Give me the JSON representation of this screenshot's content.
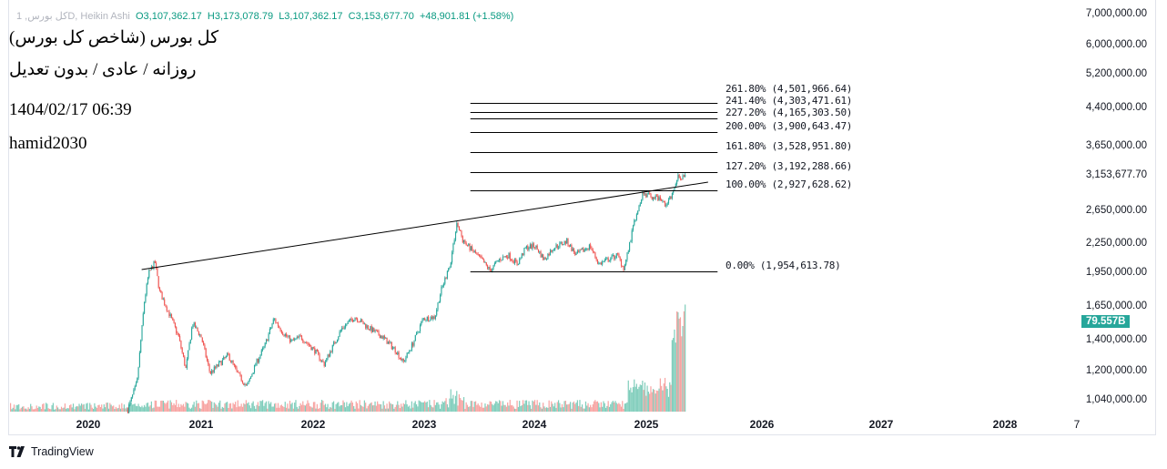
{
  "legend": {
    "symbol": "کل بورس, 1D, Heikin Ashi",
    "open": "O3,107,362.17",
    "high": "H3,173,078.79",
    "low": "L3,107,362.17",
    "close": "C3,153,677.70",
    "change": "+48,901.81 (+1.58%)"
  },
  "notes": {
    "title": "کل بورس (شاخص کل بورس)",
    "subtitle": "روزانه / عادی / بدون تعدیل",
    "datetime": "1404/02/17 06:39",
    "author": "hamid2030"
  },
  "volume_badge": "79.557B",
  "footer": {
    "logo_text": "TradingView"
  },
  "colors": {
    "up": "#26a69a",
    "down": "#ef5350",
    "volume_up": "#7fcdbb",
    "volume_down": "#f7a3a1",
    "line": "#000000"
  },
  "chart_data": {
    "type": "candlestick",
    "style": "Heikin Ashi",
    "y_scale": "log",
    "yticks": [
      "7,000,000.00",
      "6,000,000.00",
      "5,200,000.00",
      "4,400,000.00",
      "3,650,000.00",
      "2,650,000.00",
      "2,250,000.00",
      "1,950,000.00",
      "1,650,000.00",
      "1,400,000.00",
      "1,200,000.00",
      "1,040,000.00"
    ],
    "ytick_values": [
      7000000,
      6000000,
      5200000,
      4400000,
      3650000,
      2650000,
      2250000,
      1950000,
      1650000,
      1400000,
      1200000,
      1040000
    ],
    "last_price_label": "3,153,677.70",
    "last_price": 3153677.7,
    "xticks": [
      "2020",
      "2021",
      "2022",
      "2023",
      "2024",
      "2025",
      "2026",
      "2027",
      "2028",
      "7"
    ],
    "grid": false,
    "price_path": [
      [
        "2020-05-08",
        989000
      ],
      [
        "2020-06-07",
        1132000
      ],
      [
        "2020-07-01",
        1696000
      ],
      [
        "2020-07-15",
        1941000
      ],
      [
        "2020-08-04",
        2049000
      ],
      [
        "2020-08-19",
        1774000
      ],
      [
        "2020-09-20",
        1585000
      ],
      [
        "2020-10-20",
        1417000
      ],
      [
        "2020-11-12",
        1210000
      ],
      [
        "2020-12-04",
        1516000
      ],
      [
        "2021-01-01",
        1417000
      ],
      [
        "2021-01-30",
        1184000
      ],
      [
        "2021-02-28",
        1238000
      ],
      [
        "2021-03-30",
        1295000
      ],
      [
        "2021-04-29",
        1184000
      ],
      [
        "2021-05-30",
        1107000
      ],
      [
        "2021-06-27",
        1238000
      ],
      [
        "2021-07-27",
        1355000
      ],
      [
        "2021-08-26",
        1550000
      ],
      [
        "2021-09-24",
        1449000
      ],
      [
        "2021-10-23",
        1386000
      ],
      [
        "2021-11-22",
        1417000
      ],
      [
        "2022-01-06",
        1325000
      ],
      [
        "2022-02-06",
        1238000
      ],
      [
        "2022-03-07",
        1355000
      ],
      [
        "2022-04-06",
        1482000
      ],
      [
        "2022-05-19",
        1564000
      ],
      [
        "2022-07-02",
        1482000
      ],
      [
        "2022-08-17",
        1417000
      ],
      [
        "2022-09-30",
        1325000
      ],
      [
        "2022-10-24",
        1249000
      ],
      [
        "2022-11-28",
        1386000
      ],
      [
        "2022-12-28",
        1550000
      ],
      [
        "2023-02-05",
        1564000
      ],
      [
        "2023-02-25",
        1774000
      ],
      [
        "2023-03-28",
        2030000
      ],
      [
        "2023-04-19",
        2486000
      ],
      [
        "2023-05-10",
        2272000
      ],
      [
        "2023-06-09",
        2172000
      ],
      [
        "2023-07-09",
        2076000
      ],
      [
        "2023-08-07",
        1967000
      ],
      [
        "2023-09-06",
        2076000
      ],
      [
        "2023-10-06",
        2124000
      ],
      [
        "2023-11-05",
        2030000
      ],
      [
        "2023-12-04",
        2202000
      ],
      [
        "2024-01-03",
        2222000
      ],
      [
        "2024-02-02",
        2076000
      ],
      [
        "2024-03-03",
        2202000
      ],
      [
        "2024-04-16",
        2272000
      ],
      [
        "2024-05-16",
        2124000
      ],
      [
        "2024-07-01",
        2222000
      ],
      [
        "2024-07-30",
        2030000
      ],
      [
        "2024-08-29",
        2076000
      ],
      [
        "2024-09-28",
        2124000
      ],
      [
        "2024-10-20",
        1985000
      ],
      [
        "2024-11-06",
        2222000
      ],
      [
        "2024-11-25",
        2542000
      ],
      [
        "2024-12-20",
        2883000
      ],
      [
        "2025-01-08",
        2845000
      ],
      [
        "2025-02-09",
        2807000
      ],
      [
        "2025-03-05",
        2720000
      ],
      [
        "2025-03-26",
        2883000
      ],
      [
        "2025-04-10",
        3113000
      ],
      [
        "2025-05-07",
        3153677.7
      ]
    ],
    "trendline": [
      [
        "2020-06-22",
        1976000
      ],
      [
        "2025-07-15",
        3043000
      ]
    ],
    "fibonacci": {
      "start": "2023-06-03",
      "end": "2025-08-14",
      "levels": [
        {
          "label": "261.80% (4,501,966.64)",
          "price": 4501966.64
        },
        {
          "label": "241.40% (4,303,471.61)",
          "price": 4303471.61
        },
        {
          "label": "227.20% (4,165,303.50)",
          "price": 4165303.5
        },
        {
          "label": "200.00% (3,900,643.47)",
          "price": 3900643.47
        },
        {
          "label": "161.80% (3,528,951.80)",
          "price": 3528951.8
        },
        {
          "label": "127.20% (3,192,288.66)",
          "price": 3192288.66
        },
        {
          "label": "100.00% (2,927,628.62)",
          "price": 2927628.62
        },
        {
          "label": "0.00% (1,954,613.78)",
          "price": 1954613.78
        }
      ]
    }
  }
}
